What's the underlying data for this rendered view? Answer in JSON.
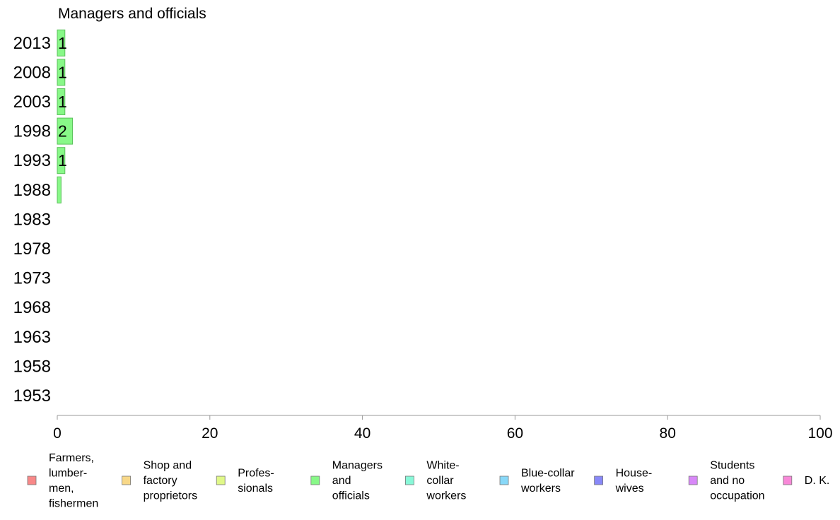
{
  "chart_data": {
    "type": "bar",
    "orientation": "horizontal",
    "title": "Managers and officials",
    "categories": [
      "2013",
      "2008",
      "2003",
      "1998",
      "1993",
      "1988",
      "1983",
      "1978",
      "1973",
      "1968",
      "1963",
      "1958",
      "1953"
    ],
    "series": [
      {
        "name": "Managers and officials",
        "color": "#88f888",
        "values": [
          1,
          1,
          1,
          2,
          1,
          0.5,
          0,
          0,
          0,
          0,
          0,
          0,
          0
        ],
        "data_labels": [
          "1",
          "1",
          "1",
          "2",
          "1",
          "",
          "",
          "",
          "",
          "",
          "",
          "",
          ""
        ]
      }
    ],
    "xlim": [
      0,
      100
    ],
    "xticks": [
      0,
      20,
      40,
      60,
      80,
      100
    ],
    "xlabel": "",
    "ylabel": "",
    "grid": false,
    "legend_position": "bottom",
    "legend": [
      {
        "lines": [
          "Farmers,",
          "lumber-",
          "men,",
          "fishermen"
        ],
        "color": "#f88888"
      },
      {
        "lines": [
          "Shop and",
          "factory",
          "proprietors"
        ],
        "color": "#f8d888"
      },
      {
        "lines": [
          "Profes-",
          "sionals"
        ],
        "color": "#e0f888"
      },
      {
        "lines": [
          "Managers",
          "and",
          "officials"
        ],
        "color": "#88f888"
      },
      {
        "lines": [
          "White-",
          "collar",
          "workers"
        ],
        "color": "#88f8d8"
      },
      {
        "lines": [
          "Blue-collar",
          "workers"
        ],
        "color": "#88d8f8"
      },
      {
        "lines": [
          "House-",
          "wives"
        ],
        "color": "#8888f8"
      },
      {
        "lines": [
          "Students",
          "and no",
          "occupation"
        ],
        "color": "#d888f8"
      },
      {
        "lines": [
          "D. K."
        ],
        "color": "#f888d8"
      }
    ]
  }
}
